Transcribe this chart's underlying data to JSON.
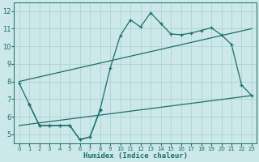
{
  "bg_color": "#cce8e8",
  "grid_color": "#aacfcf",
  "line_color": "#1c6e6e",
  "xlabel": "Humidex (Indice chaleur)",
  "xlim": [
    -0.5,
    23.5
  ],
  "ylim": [
    4.5,
    12.5
  ],
  "xticks": [
    0,
    1,
    2,
    3,
    4,
    5,
    6,
    7,
    8,
    9,
    10,
    11,
    12,
    13,
    14,
    15,
    16,
    17,
    18,
    19,
    20,
    21,
    22,
    23
  ],
  "yticks": [
    5,
    6,
    7,
    8,
    9,
    10,
    11,
    12
  ],
  "jagged_x": [
    0,
    1,
    2,
    3,
    4,
    5,
    6,
    7,
    8,
    9,
    10,
    11,
    12,
    13,
    14,
    15,
    16,
    17,
    18,
    19,
    20,
    21,
    22,
    23
  ],
  "jagged_y": [
    7.9,
    6.7,
    5.5,
    5.5,
    5.5,
    5.5,
    4.7,
    4.85,
    6.4,
    8.75,
    10.6,
    11.5,
    11.1,
    11.9,
    11.3,
    10.7,
    10.65,
    10.75,
    10.9,
    11.05,
    10.65,
    10.1,
    7.8,
    7.2
  ],
  "upper_line_x": [
    0,
    23
  ],
  "upper_line_y": [
    8.0,
    11.0
  ],
  "lower_line_x": [
    0,
    23
  ],
  "lower_line_y": [
    5.5,
    7.2
  ],
  "lower_jagged_x": [
    1,
    2,
    3,
    4,
    5,
    6,
    7,
    8
  ],
  "lower_jagged_y": [
    6.7,
    5.5,
    5.5,
    5.5,
    5.5,
    4.7,
    4.85,
    6.35
  ]
}
